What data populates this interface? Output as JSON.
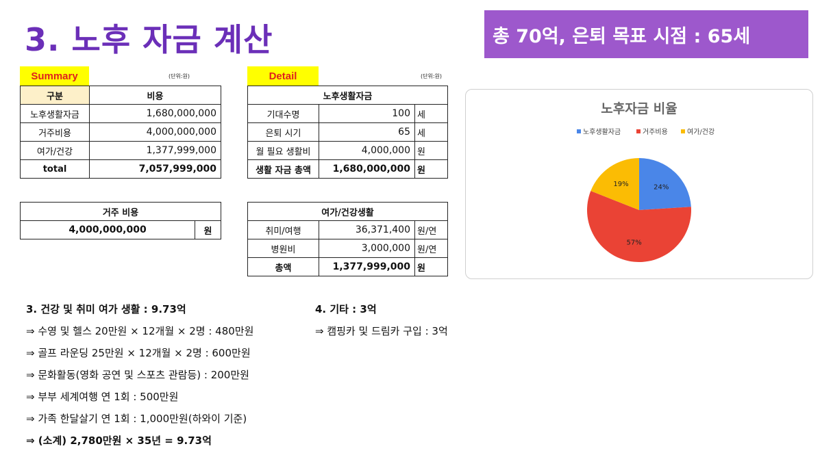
{
  "title": "3. 노후 자금 계산",
  "banner": "총 70억, 은퇴 목표 시점  : 65세",
  "summary": {
    "tag": "Summary",
    "unit": "(단위:원)",
    "headers": [
      "구분",
      "비용"
    ],
    "rows": [
      {
        "label": "노후생활자금",
        "value": "1,680,000,000"
      },
      {
        "label": "거주비용",
        "value": "4,000,000,000"
      },
      {
        "label": "여가/건강",
        "value": "1,377,999,000"
      }
    ],
    "total_label": "total",
    "total_value": "7,057,999,000"
  },
  "housing": {
    "header": "거주 비용",
    "value": "4,000,000,000",
    "unit": "원"
  },
  "detail": {
    "tag": "Detail",
    "unit": "(단위:원)",
    "header": "노후생활자금",
    "rows": [
      {
        "label": "기대수명",
        "value": "100",
        "unit": "세"
      },
      {
        "label": "은퇴 시기",
        "value": "65",
        "unit": "세"
      },
      {
        "label": "월 필요 생활비",
        "value": "4,000,000",
        "unit": "원"
      },
      {
        "label": "생활 자금 총액",
        "value": "1,680,000,000",
        "unit": "원"
      }
    ]
  },
  "leisure": {
    "header": "여가/건강생활",
    "rows": [
      {
        "label": "취미/여행",
        "value": "36,371,400",
        "unit": "원/연"
      },
      {
        "label": "병원비",
        "value": "3,000,000",
        "unit": "원/연"
      },
      {
        "label": "총액",
        "value": "1,377,999,000",
        "unit": "원"
      }
    ]
  },
  "chart_data": {
    "type": "pie",
    "title": "노후자금 비율",
    "legend_position": "top",
    "categories": [
      "노후생활자금",
      "거주비용",
      "여가/건강"
    ],
    "values": [
      24,
      57,
      19
    ],
    "labels": [
      "24%",
      "57%",
      "19%"
    ],
    "colors": [
      "#4a86e8",
      "#ea4335",
      "#fbbc04"
    ]
  },
  "notes_left": {
    "heading": "3. 건강 및 취미 여가 생활 : 9.73억",
    "items": [
      "⇒ 수영 및 헬스 20만원 × 12개월 × 2명 : 480만원",
      "⇒ 골프 라운딩 25만원 × 12개월 × 2명 : 600만원",
      "⇒ 문화활동(영화 공연 및 스포츠 관람등) : 200만원",
      "⇒ 부부 세계여행 연 1회 : 500만원",
      "⇒ 가족 한달살기 연 1회 : 1,000만원(하와이 기준)"
    ],
    "subtotal": "⇒ (소계) 2,780만원 × 35년 = 9.73억"
  },
  "notes_right": {
    "heading": "4. 기타 : 3억",
    "items": [
      "⇒ 캠핑카 및 드림카 구입 : 3억"
    ]
  }
}
